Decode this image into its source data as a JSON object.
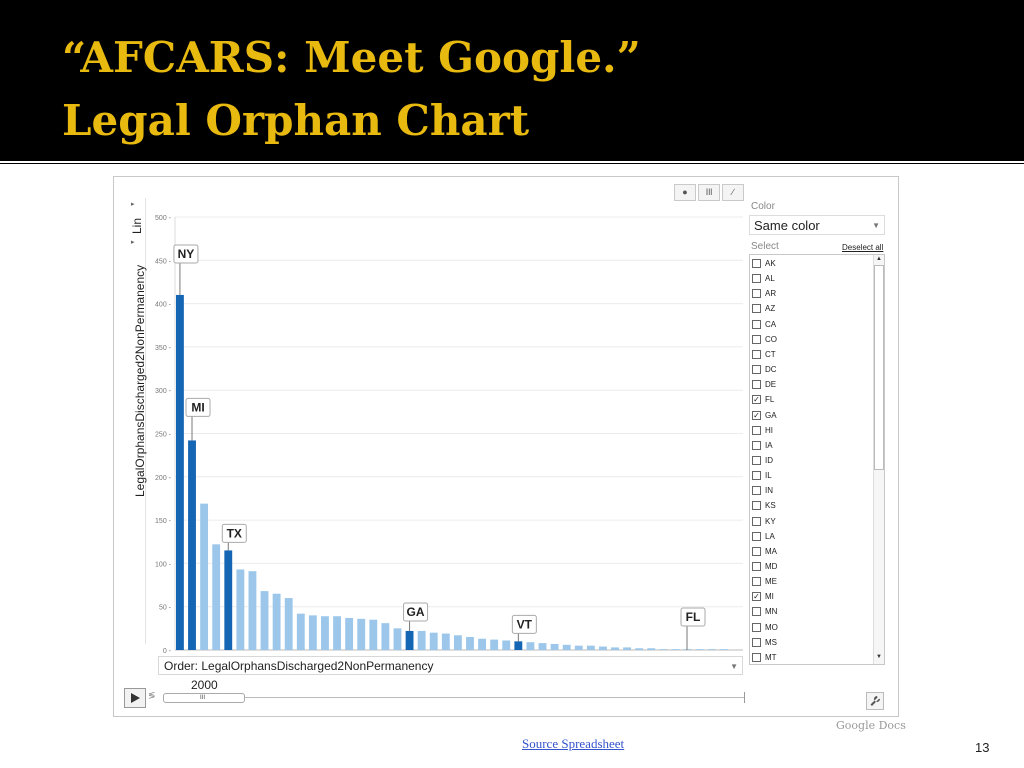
{
  "slide": {
    "title_line_1": "“AFCARS: Meet Google.”",
    "title_line_2": "Legal Orphan Chart",
    "source_link": "Source Spreadsheet",
    "page_number": "13",
    "logo_text": "Google Docs"
  },
  "colors": {
    "title": "#e8b90f",
    "bar_selected": "#1565b5",
    "bar_default": "#9cc7ea"
  },
  "controls": {
    "y_scale_label": "Lin",
    "order_label": "Order: LegalOrphansDischarged2NonPermanency",
    "play_icon": "play-icon",
    "year": "2000",
    "color_label": "Color",
    "color_value": "Same color",
    "select_label": "Select",
    "deselect_all": "Deselect all"
  },
  "states": [
    {
      "name": "AK",
      "checked": false
    },
    {
      "name": "AL",
      "checked": false
    },
    {
      "name": "AR",
      "checked": false
    },
    {
      "name": "AZ",
      "checked": false
    },
    {
      "name": "CA",
      "checked": false
    },
    {
      "name": "CO",
      "checked": false
    },
    {
      "name": "CT",
      "checked": false
    },
    {
      "name": "DC",
      "checked": false
    },
    {
      "name": "DE",
      "checked": false
    },
    {
      "name": "FL",
      "checked": true
    },
    {
      "name": "GA",
      "checked": true
    },
    {
      "name": "HI",
      "checked": false
    },
    {
      "name": "IA",
      "checked": false
    },
    {
      "name": "ID",
      "checked": false
    },
    {
      "name": "IL",
      "checked": false
    },
    {
      "name": "IN",
      "checked": false
    },
    {
      "name": "KS",
      "checked": false
    },
    {
      "name": "KY",
      "checked": false
    },
    {
      "name": "LA",
      "checked": false
    },
    {
      "name": "MA",
      "checked": false
    },
    {
      "name": "MD",
      "checked": false
    },
    {
      "name": "ME",
      "checked": false
    },
    {
      "name": "MI",
      "checked": true
    },
    {
      "name": "MN",
      "checked": false
    },
    {
      "name": "MO",
      "checked": false
    },
    {
      "name": "MS",
      "checked": false
    },
    {
      "name": "MT",
      "checked": false
    }
  ],
  "chart_data": {
    "type": "bar",
    "ylabel": "LegalOrphansDischarged2NonPermanency",
    "ylim": [
      0,
      500
    ],
    "yticks": [
      0,
      50,
      100,
      150,
      200,
      250,
      300,
      350,
      400,
      450,
      500
    ],
    "grid": true,
    "values": [
      410,
      242,
      169,
      122,
      115,
      93,
      91,
      68,
      65,
      60,
      42,
      40,
      39,
      39,
      37,
      36,
      35,
      31,
      25,
      22,
      22,
      20,
      19,
      17,
      15,
      13,
      12,
      11,
      10,
      9,
      8,
      7,
      6,
      5,
      5,
      4,
      3,
      3,
      2,
      2,
      1,
      1,
      1,
      1,
      1,
      1
    ],
    "selected": [
      {
        "index": 0,
        "label": "NY"
      },
      {
        "index": 1,
        "label": "MI"
      },
      {
        "index": 4,
        "label": "TX"
      },
      {
        "index": 19,
        "label": "GA"
      },
      {
        "index": 28,
        "label": "VT"
      }
    ],
    "zero_value_labels": [
      {
        "label": "FL"
      }
    ]
  }
}
